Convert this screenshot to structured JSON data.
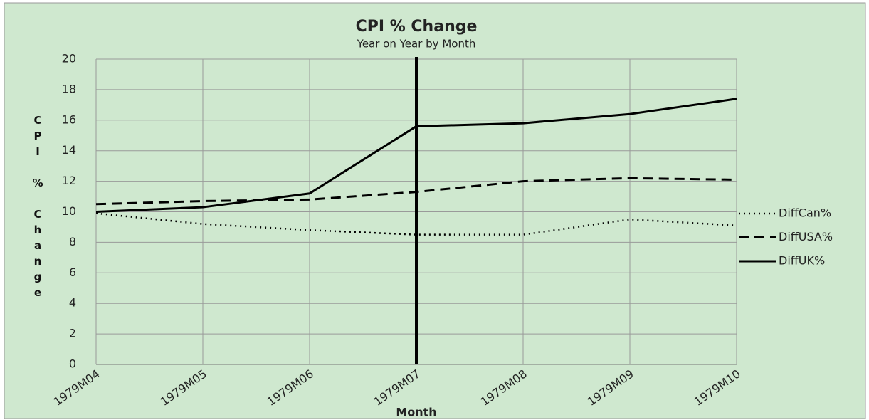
{
  "chart_data": {
    "type": "line",
    "title": "CPI  % Change",
    "subtitle": "Year on Year by Month",
    "x_label": "Month",
    "y_label": "CPI % Change",
    "categories": [
      "1979M04",
      "1979M05",
      "1979M06",
      "1979M07",
      "1979M08",
      "1979M09",
      "1979M10"
    ],
    "series": [
      {
        "name": "DiffCan%",
        "color": "#000000",
        "dash": "dotted",
        "values": [
          9.9,
          9.2,
          8.8,
          8.5,
          8.5,
          9.5,
          9.1
        ]
      },
      {
        "name": "DiffUSA%",
        "color": "#000000",
        "dash": "dashed",
        "values": [
          10.5,
          10.7,
          10.8,
          11.3,
          12.0,
          12.2,
          12.1
        ]
      },
      {
        "name": "DiffUK%",
        "color": "#000000",
        "dash": "solid",
        "values": [
          10.0,
          10.3,
          11.2,
          15.6,
          15.8,
          16.4,
          17.4
        ]
      }
    ],
    "ylim": [
      0,
      20
    ],
    "yticks": [
      0,
      2,
      4,
      6,
      8,
      10,
      12,
      14,
      16,
      18,
      20
    ],
    "grid": true,
    "legend": "right"
  }
}
